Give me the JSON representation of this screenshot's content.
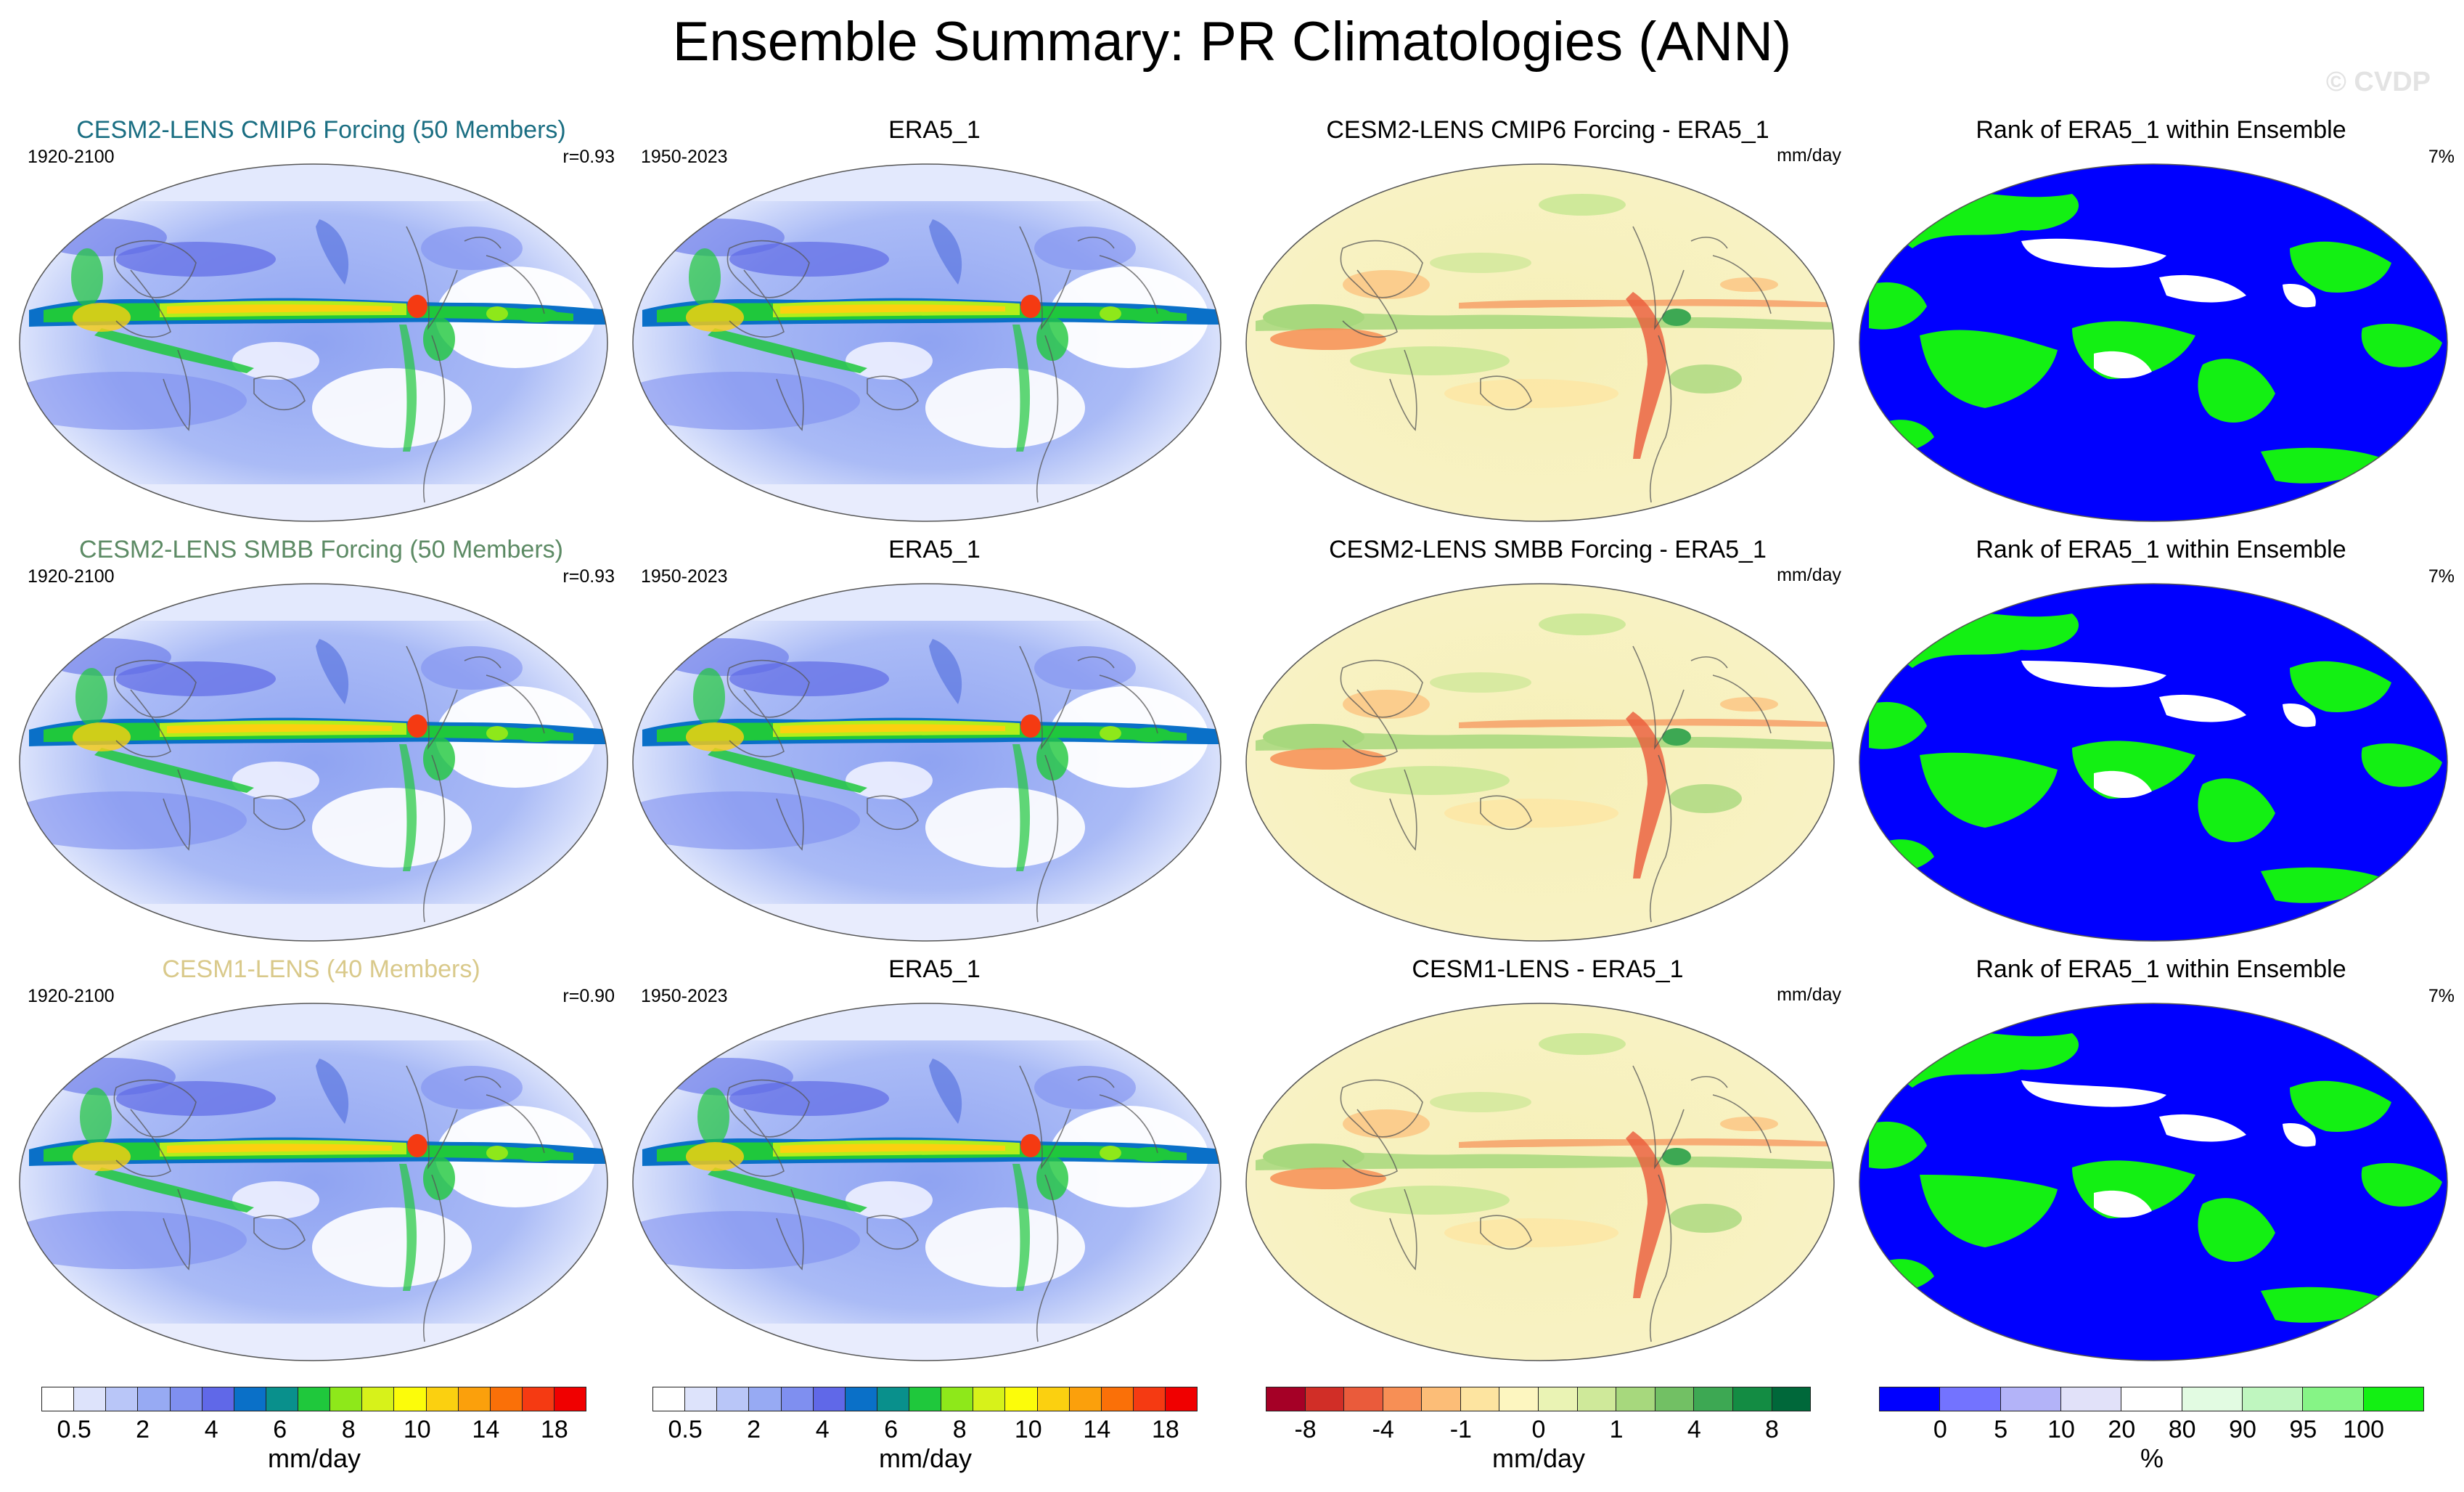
{
  "title": "Ensemble Summary: PR Climatologies (ANN)",
  "watermark": "© CVDP",
  "colors": {
    "row1_title": "#1a6e82",
    "row2_title": "#5c8a64",
    "row3_title": "#d9c98a"
  },
  "rows": [
    {
      "model": {
        "title": "CESM2-LENS CMIP6 Forcing (50 Members)",
        "years": "1920-2100",
        "corr": "r=0.93"
      },
      "obs": {
        "title": "ERA5_1",
        "years": "1950-2023"
      },
      "diff": {
        "title": "CESM2-LENS CMIP6 Forcing - ERA5_1",
        "unit": "mm/day"
      },
      "rank": {
        "title": "Rank of ERA5_1 within Ensemble",
        "pct": "7%"
      }
    },
    {
      "model": {
        "title": "CESM2-LENS SMBB Forcing (50 Members)",
        "years": "1920-2100",
        "corr": "r=0.93"
      },
      "obs": {
        "title": "ERA5_1",
        "years": "1950-2023"
      },
      "diff": {
        "title": "CESM2-LENS SMBB Forcing - ERA5_1",
        "unit": "mm/day"
      },
      "rank": {
        "title": "Rank of ERA5_1 within Ensemble",
        "pct": "7%"
      }
    },
    {
      "model": {
        "title": "CESM1-LENS (40 Members)",
        "years": "1920-2100",
        "corr": "r=0.90"
      },
      "obs": {
        "title": "ERA5_1",
        "years": "1950-2023"
      },
      "diff": {
        "title": "CESM1-LENS - ERA5_1",
        "unit": "mm/day"
      },
      "rank": {
        "title": "Rank of ERA5_1 within Ensemble",
        "pct": "7%"
      }
    }
  ],
  "colorbars": [
    {
      "unit": "mm/day",
      "colors": [
        "#ffffff",
        "#dde3fb",
        "#b9c6f8",
        "#97aaf3",
        "#7f8ff0",
        "#6068e8",
        "#0a70c8",
        "#09908c",
        "#1fc83c",
        "#8ee81a",
        "#d7f21a",
        "#fcfc0a",
        "#fbd010",
        "#fba00c",
        "#fa7008",
        "#f53a12",
        "#f00000"
      ],
      "ticks": [
        "0.5",
        "2",
        "4",
        "6",
        "8",
        "10",
        "14",
        "18"
      ]
    },
    {
      "unit": "mm/day",
      "colors": [
        "#ffffff",
        "#dde3fb",
        "#b9c6f8",
        "#97aaf3",
        "#7f8ff0",
        "#6068e8",
        "#0a70c8",
        "#09908c",
        "#1fc83c",
        "#8ee81a",
        "#d7f21a",
        "#fcfc0a",
        "#fbd010",
        "#fba00c",
        "#fa7008",
        "#f53a12",
        "#f00000"
      ],
      "ticks": [
        "0.5",
        "2",
        "4",
        "6",
        "8",
        "10",
        "14",
        "18"
      ]
    },
    {
      "unit": "mm/day",
      "colors": [
        "#a50026",
        "#d12e27",
        "#ea5b3b",
        "#f78f55",
        "#fcbd77",
        "#fde4a0",
        "#fdf6c0",
        "#eaf3b4",
        "#cfe99a",
        "#a7d87d",
        "#72c064",
        "#3da853",
        "#138c43",
        "#00683a"
      ],
      "ticks": [
        "-8",
        "-4",
        "-1",
        "0",
        "1",
        "4",
        "8"
      ]
    },
    {
      "unit": "%",
      "colors": [
        "#0000ff",
        "#7373ff",
        "#b3b3f8",
        "#e1e1f9",
        "#ffffff",
        "#e2fbe2",
        "#bff6bf",
        "#86f486",
        "#13f013"
      ],
      "ticks": [
        "0",
        "5",
        "10",
        "20",
        "80",
        "90",
        "95",
        "100"
      ]
    }
  ]
}
